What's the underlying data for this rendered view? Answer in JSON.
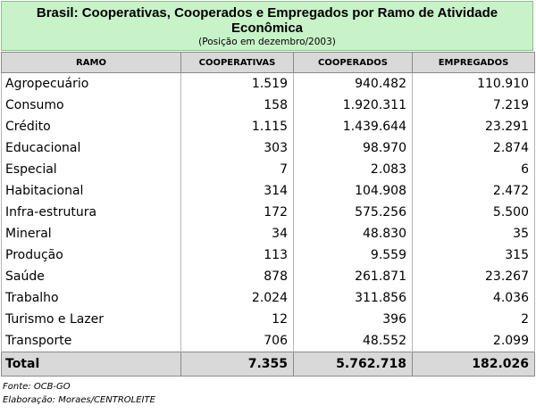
{
  "title": "Brasil: Cooperativas, Cooperados e Empregados por Ramo de Atividade Econômica",
  "subtitle": "(Posição em dezembro/2003)",
  "headers": [
    "RAMO",
    "COOPERATIVAS",
    "COOPERADOS",
    "EMPREGADOS"
  ],
  "rows": [
    [
      "Agropecuário",
      "1.519",
      "940.482",
      "110.910"
    ],
    [
      "Consumo",
      "158",
      "1.920.311",
      "7.219"
    ],
    [
      "Crédito",
      "1.115",
      "1.439.644",
      "23.291"
    ],
    [
      "Educacional",
      "303",
      "98.970",
      "2.874"
    ],
    [
      "Especial",
      "7",
      "2.083",
      "6"
    ],
    [
      "Habitacional",
      "314",
      "104.908",
      "2.472"
    ],
    [
      "Infra-estrutura",
      "172",
      "575.256",
      "5.500"
    ],
    [
      "Mineral",
      "34",
      "48.830",
      "35"
    ],
    [
      "Produção",
      "113",
      "9.559",
      "315"
    ],
    [
      "Saúde",
      "878",
      "261.871",
      "23.267"
    ],
    [
      "Trabalho",
      "2.024",
      "311.856",
      "4.036"
    ],
    [
      "Turismo e Lazer",
      "12",
      "396",
      "2"
    ],
    [
      "Transporte",
      "706",
      "48.552",
      "2.099"
    ]
  ],
  "total": [
    "Total",
    "7.355",
    "5.762.718",
    "182.026"
  ],
  "notes": {
    "source": "Fonte: OCB-GO",
    "elaboration": "Elaboração: Moraes/CENTROLEITE"
  }
}
